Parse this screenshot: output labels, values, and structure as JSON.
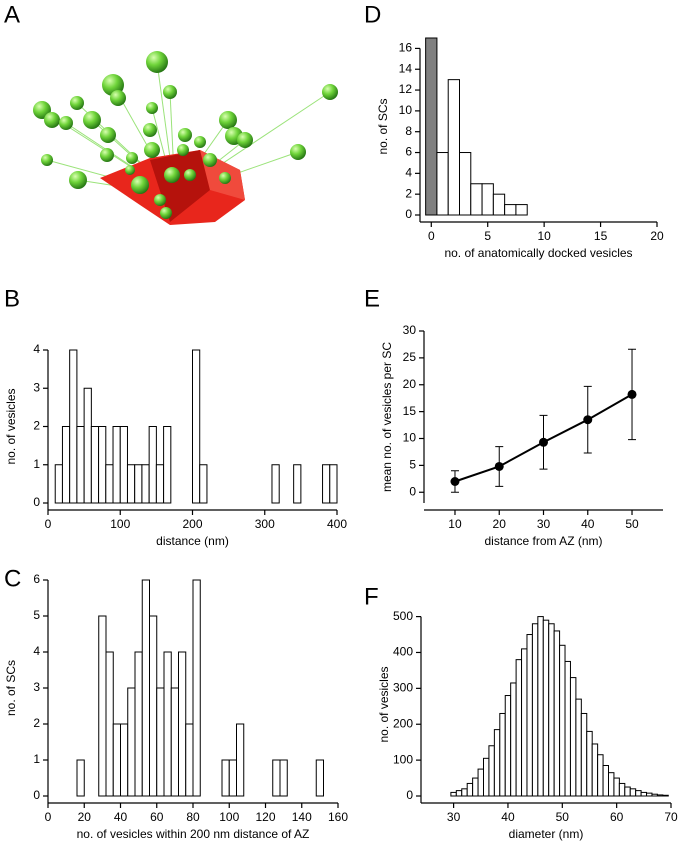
{
  "image_panel": {
    "panel": "A"
  },
  "chart_data": [
    {
      "type": "histogram",
      "panel": "B",
      "xlabel": "distance (nm)",
      "ylabel": "no. of vesicles",
      "bins": [
        0,
        10,
        20,
        30,
        40,
        50,
        60,
        70,
        80,
        90,
        100,
        110,
        120,
        130,
        140,
        150,
        160,
        170,
        180,
        190,
        200,
        210,
        220,
        230,
        240,
        250,
        260,
        270,
        280,
        290,
        300,
        310,
        320,
        330,
        340,
        350,
        360,
        370,
        380,
        390,
        400
      ],
      "values": [
        0,
        1,
        2,
        4,
        2,
        3,
        2,
        2,
        1,
        2,
        2,
        1,
        1,
        1,
        2,
        1,
        2,
        0,
        0,
        0,
        4,
        1,
        0,
        0,
        0,
        0,
        0,
        0,
        0,
        0,
        0,
        1,
        0,
        0,
        1,
        0,
        0,
        0,
        1,
        1
      ],
      "color": "#ffffff",
      "edge_color": "#000000",
      "xlim": [
        0,
        400
      ],
      "xticks": [
        0,
        100,
        200,
        300,
        400
      ],
      "ylim": [
        0,
        4
      ],
      "yticks": [
        0,
        1,
        2,
        3,
        4
      ]
    },
    {
      "type": "histogram",
      "panel": "C",
      "xlabel": "no. of vesicles within 200 nm distance of AZ",
      "ylabel": "no. of SCs",
      "bins": [
        16,
        20,
        24,
        28,
        32,
        36,
        40,
        44,
        48,
        52,
        56,
        60,
        64,
        68,
        72,
        76,
        80,
        84,
        88,
        92,
        96,
        100,
        104,
        108,
        112,
        116,
        120,
        124,
        128,
        132,
        136,
        140,
        144,
        148,
        152,
        156
      ],
      "values": [
        1,
        0,
        0,
        5,
        4,
        2,
        2,
        3,
        4,
        6,
        5,
        3,
        4,
        3,
        4,
        2,
        6,
        0,
        0,
        0,
        1,
        1,
        2,
        0,
        0,
        0,
        0,
        1,
        1,
        0,
        0,
        0,
        0,
        1,
        0
      ],
      "color": "#ffffff",
      "edge_color": "#000000",
      "xlim": [
        0,
        160
      ],
      "xticks": [
        0,
        20,
        40,
        60,
        80,
        100,
        120,
        140,
        160
      ],
      "ylim": [
        0,
        6
      ],
      "yticks": [
        0,
        1,
        2,
        3,
        4,
        5,
        6
      ]
    },
    {
      "type": "histogram",
      "panel": "D",
      "xlabel": "no. of anatomically docked vesicles",
      "ylabel": "no. of SCs",
      "bins": [
        -0.5,
        0.5,
        1.5,
        2.5,
        3.5,
        4.5,
        5.5,
        6.5,
        7.5,
        8.5
      ],
      "values": [
        17,
        6,
        13,
        6,
        3,
        3,
        2,
        1,
        1
      ],
      "colors": [
        "#808080",
        "#ffffff",
        "#ffffff",
        "#ffffff",
        "#ffffff",
        "#ffffff",
        "#ffffff",
        "#ffffff",
        "#ffffff"
      ],
      "edge_color": "#000000",
      "xlim": [
        -1,
        20
      ],
      "xticks": [
        0,
        5,
        10,
        15,
        20
      ],
      "ylim": [
        0,
        17
      ],
      "yticks": [
        0,
        2,
        4,
        6,
        8,
        10,
        12,
        14,
        16
      ]
    },
    {
      "type": "line",
      "panel": "E",
      "xlabel": "distance from AZ (nm)",
      "ylabel": "mean no. of vesicles per SC",
      "x": [
        10,
        20,
        30,
        40,
        50
      ],
      "values": [
        2,
        4.8,
        9.3,
        13.5,
        18.2
      ],
      "errors": [
        2,
        3.7,
        5,
        6.2,
        8.4
      ],
      "color": "#000000",
      "xlim": [
        3,
        57
      ],
      "xticks": [
        10,
        20,
        30,
        40,
        50
      ],
      "ylim": [
        -2,
        30
      ],
      "yticks": [
        0,
        5,
        10,
        15,
        20,
        25,
        30
      ]
    },
    {
      "type": "histogram",
      "panel": "F",
      "xlabel": "diameter (nm)",
      "ylabel": "no. of vesicles",
      "bins": [
        29.5,
        30.5,
        31.5,
        32.5,
        33.5,
        34.5,
        35.5,
        36.5,
        37.5,
        38.5,
        39.5,
        40.5,
        41.5,
        42.5,
        43.5,
        44.5,
        45.5,
        46.5,
        47.5,
        48.5,
        49.5,
        50.5,
        51.5,
        52.5,
        53.5,
        54.5,
        55.5,
        56.5,
        57.5,
        58.5,
        59.5,
        60.5,
        61.5,
        62.5,
        63.5,
        64.5,
        65.5,
        66.5,
        67.5,
        68.5,
        69.5
      ],
      "values": [
        10,
        15,
        20,
        35,
        50,
        75,
        105,
        140,
        185,
        230,
        280,
        315,
        380,
        410,
        450,
        480,
        500,
        490,
        480,
        460,
        420,
        375,
        330,
        270,
        230,
        180,
        145,
        115,
        85,
        65,
        50,
        35,
        25,
        20,
        15,
        10,
        8,
        5,
        3,
        2
      ],
      "color": "#ffffff",
      "edge_color": "#000000",
      "xlim": [
        24,
        70
      ],
      "xticks": [
        30,
        40,
        50,
        60,
        70
      ],
      "ylim": [
        0,
        510
      ],
      "yticks": [
        0,
        100,
        200,
        300,
        400,
        500
      ]
    }
  ]
}
